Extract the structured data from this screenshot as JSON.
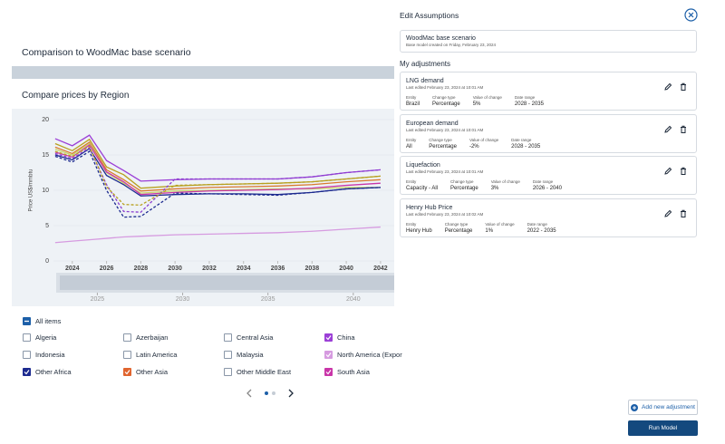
{
  "left": {
    "title": "Comparison to WoodMac base scenario",
    "chart_title": "Compare prices by Region",
    "chart_data": {
      "type": "line",
      "y_label": "Price US$/mmbtu",
      "xlim": [
        2022.9,
        2042.8
      ],
      "xticks": [
        2024,
        2026,
        2028,
        2030,
        2032,
        2034,
        2036,
        2038,
        2040,
        2042
      ],
      "ylim": [
        0,
        20
      ],
      "yticks": [
        0,
        5,
        10,
        15,
        20
      ],
      "grid": true,
      "x": [
        2023,
        2024,
        2025,
        2026,
        2027,
        2028,
        2030,
        2032,
        2034,
        2036,
        2038,
        2040,
        2042
      ],
      "series": [
        {
          "color": "#9b3fd6",
          "dashed": false,
          "values": [
            17.3,
            16.3,
            17.8,
            14.2,
            12.8,
            11.3,
            11.5,
            11.6,
            11.6,
            11.6,
            11.9,
            12.5,
            12.9
          ]
        },
        {
          "color": "#b8a020",
          "dashed": false,
          "values": [
            16.6,
            15.6,
            17.2,
            13.3,
            12.2,
            10.3,
            10.6,
            10.8,
            10.9,
            11.0,
            11.2,
            11.6,
            12.0
          ]
        },
        {
          "color": "#d97a30",
          "dashed": false,
          "values": [
            16.1,
            15.2,
            16.8,
            12.9,
            11.5,
            9.9,
            10.2,
            10.4,
            10.5,
            10.6,
            10.8,
            11.2,
            11.5
          ]
        },
        {
          "color": "#c6d66a",
          "dashed": false,
          "values": [
            15.8,
            15.0,
            16.6,
            12.5,
            11.0,
            9.6,
            9.9,
            10.0,
            10.1,
            10.2,
            10.2,
            10.4,
            10.4
          ]
        },
        {
          "color": "#c935a8",
          "dashed": false,
          "values": [
            15.4,
            14.7,
            16.4,
            12.6,
            11.2,
            9.4,
            9.7,
            9.9,
            10.0,
            10.1,
            10.3,
            10.7,
            11.0
          ]
        },
        {
          "color": "#1c2a8f",
          "dashed": false,
          "values": [
            15.0,
            14.3,
            15.9,
            12.1,
            10.8,
            9.2,
            9.4,
            9.5,
            9.5,
            9.4,
            9.7,
            10.2,
            10.4
          ]
        },
        {
          "color": "#d69be0",
          "dashed": false,
          "values": [
            2.6,
            2.8,
            3.0,
            3.2,
            3.4,
            3.5,
            3.7,
            3.8,
            3.9,
            4.0,
            4.2,
            4.5,
            4.8
          ]
        },
        {
          "color": "#8a3fd0",
          "dashed": true,
          "values": [
            15.2,
            14.5,
            16.0,
            10.8,
            7.0,
            6.9,
            11.6,
            11.6,
            11.6,
            11.6,
            11.9,
            12.5,
            12.9
          ]
        },
        {
          "color": "#b8a020",
          "dashed": true,
          "values": [
            15.5,
            14.8,
            16.2,
            10.5,
            8.0,
            7.9,
            10.7,
            10.8,
            10.9,
            11.0,
            11.2,
            11.6,
            12.0
          ]
        },
        {
          "color": "#1c2a8f",
          "dashed": true,
          "values": [
            14.8,
            14.0,
            15.5,
            10.0,
            6.2,
            6.3,
            9.6,
            9.5,
            9.4,
            9.3,
            9.7,
            10.2,
            10.4
          ]
        }
      ]
    },
    "navigator": {
      "xlim": [
        2022.8,
        2042.4
      ],
      "xticks": [
        2025,
        2030,
        2035,
        2040
      ]
    },
    "filters": {
      "all": "All items",
      "items": [
        {
          "label": "Algeria",
          "checked": false
        },
        {
          "label": "Azerbaijan",
          "checked": false
        },
        {
          "label": "Central Asia",
          "checked": false
        },
        {
          "label": "China",
          "checked": true,
          "color": "#9b3fd6"
        },
        {
          "label": "Indonesia",
          "checked": false
        },
        {
          "label": "Latin America",
          "checked": false
        },
        {
          "label": "Malaysia",
          "checked": false
        },
        {
          "label": "North America (Expor",
          "checked": true,
          "color": "#d69be0"
        },
        {
          "label": "Other Africa",
          "checked": true,
          "color": "#1c2a8f"
        },
        {
          "label": "Other Asia",
          "checked": true,
          "color": "#e0642e"
        },
        {
          "label": "Other Middle East",
          "checked": false
        },
        {
          "label": "South Asia",
          "checked": true,
          "color": "#c935a8"
        }
      ]
    }
  },
  "right": {
    "title": "Edit Assumptions",
    "base": {
      "title": "WoodMac base scenario",
      "subtitle": "Base model created on Friday, February 23, 2024"
    },
    "adjustments_title": "My adjustments",
    "adjustments": [
      {
        "title": "LNG demand",
        "edited": "Last edited February 23, 2024 at 10:01 AM",
        "fields": [
          [
            "Entity",
            "Brazil"
          ],
          [
            "Change type",
            "Percentage"
          ],
          [
            "Value of change",
            "5%"
          ],
          [
            "Date range",
            "2028 - 2035"
          ]
        ]
      },
      {
        "title": "European demand",
        "edited": "Last edited February 23, 2024 at 10:01 AM",
        "fields": [
          [
            "Entity",
            "All"
          ],
          [
            "Change type",
            "Percentage"
          ],
          [
            "Value of change",
            "-2%"
          ],
          [
            "Date range",
            "2028 - 2035"
          ]
        ]
      },
      {
        "title": "Liquefaction",
        "edited": "Last edited February 23, 2024 at 10:01 AM",
        "fields": [
          [
            "Entity",
            "Capacity - All"
          ],
          [
            "Change type",
            "Percentage"
          ],
          [
            "Value of change",
            "3%"
          ],
          [
            "Date range",
            "2026 - 2040"
          ]
        ]
      },
      {
        "title": "Henry Hub Price",
        "edited": "Last edited February 23, 2024 at 10:02 AM",
        "fields": [
          [
            "Entity",
            "Henry Hub"
          ],
          [
            "Change type",
            "Percentage"
          ],
          [
            "Value of change",
            "1%"
          ],
          [
            "Date range",
            "2022 - 2035"
          ]
        ]
      }
    ],
    "add_button": "Add new adjustment",
    "run_button": "Run Model"
  }
}
